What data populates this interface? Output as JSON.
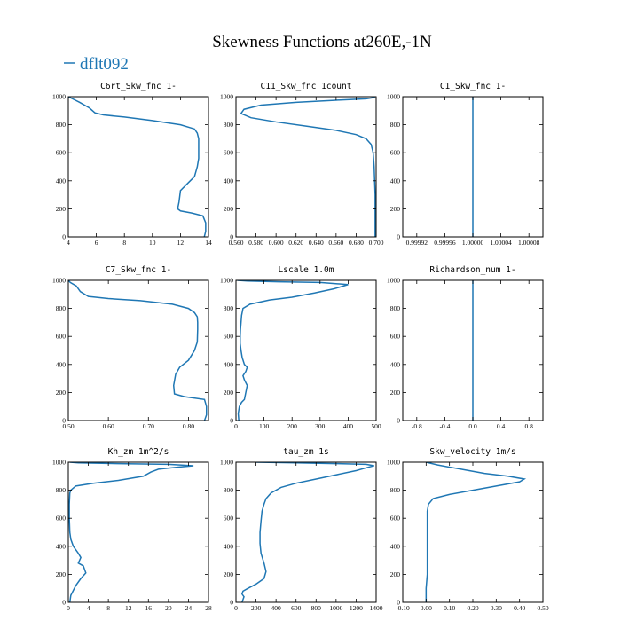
{
  "figure": {
    "title": "Skewness Functions at260E,-1N",
    "legend_label": "dflt092",
    "line_color": "#1f77b4"
  },
  "chart_data": [
    {
      "type": "line",
      "title": "C6rt_Skw_fnc   1-",
      "xlim": [
        4,
        14
      ],
      "ylim": [
        1000,
        0
      ],
      "xticks": [
        4,
        6,
        8,
        10,
        12,
        14
      ],
      "xtick_labels": [
        "4",
        "6",
        "8",
        "10",
        "12",
        "14"
      ],
      "yticks": [
        0,
        200,
        400,
        600,
        800,
        1000
      ],
      "series": [
        {
          "label": "dflt092",
          "x": [
            13.7,
            13.8,
            13.8,
            13.6,
            12.8,
            12.0,
            11.8,
            11.9,
            12.0,
            12.5,
            13.0,
            13.2,
            13.3,
            13.3,
            13.3,
            13.2,
            13.0,
            12.0,
            10.0,
            8.0,
            6.5,
            5.9,
            5.5,
            4.8,
            4.3,
            4.0
          ],
          "y": [
            0,
            40,
            100,
            150,
            170,
            185,
            200,
            250,
            330,
            380,
            430,
            500,
            560,
            650,
            700,
            740,
            770,
            800,
            830,
            855,
            870,
            885,
            920,
            960,
            985,
            1000
          ]
        }
      ]
    },
    {
      "type": "line",
      "title": "C11_Skw_fnc   1count",
      "xlim": [
        0.56,
        0.7
      ],
      "ylim": [
        1000,
        0
      ],
      "xticks": [
        0.56,
        0.58,
        0.6,
        0.62,
        0.64,
        0.66,
        0.68,
        0.7
      ],
      "xtick_labels": [
        "0.560",
        "0.580",
        "0.600",
        "0.620",
        "0.640",
        "0.660",
        "0.680",
        "0.700"
      ],
      "yticks": [
        0,
        200,
        400,
        600,
        800,
        1000
      ],
      "series": [
        {
          "label": "dflt092",
          "x": [
            0.699,
            0.699,
            0.699,
            0.698,
            0.697,
            0.695,
            0.69,
            0.68,
            0.66,
            0.63,
            0.6,
            0.575,
            0.565,
            0.568,
            0.585,
            0.62,
            0.66,
            0.69,
            0.699
          ],
          "y": [
            0,
            100,
            300,
            500,
            600,
            660,
            700,
            730,
            760,
            790,
            820,
            850,
            880,
            910,
            940,
            960,
            975,
            985,
            995
          ]
        }
      ]
    },
    {
      "type": "line",
      "title": "C1_Skw_fnc   1-",
      "xlim": [
        0.9999,
        1.0001
      ],
      "ylim": [
        1000,
        0
      ],
      "xticks": [
        0.99992,
        0.99996,
        1.0,
        1.00004,
        1.00008
      ],
      "xtick_labels": [
        "0.99992",
        "0.99996",
        "1.00000",
        "1.00004",
        "1.00008"
      ],
      "yticks": [
        0,
        200,
        400,
        600,
        800,
        1000
      ],
      "series": [
        {
          "label": "dflt092",
          "x": [
            1.0,
            1.0
          ],
          "y": [
            0,
            1000
          ]
        }
      ]
    },
    {
      "type": "line",
      "title": "C7_Skw_fnc   1-",
      "xlim": [
        0.5,
        0.85
      ],
      "ylim": [
        1000,
        0
      ],
      "xticks": [
        0.5,
        0.6,
        0.7,
        0.8
      ],
      "xtick_labels": [
        "0.50",
        "0.60",
        "0.70",
        "0.80"
      ],
      "yticks": [
        0,
        200,
        400,
        600,
        800,
        1000
      ],
      "series": [
        {
          "label": "dflt092",
          "x": [
            0.84,
            0.845,
            0.845,
            0.84,
            0.79,
            0.765,
            0.763,
            0.768,
            0.778,
            0.8,
            0.815,
            0.822,
            0.823,
            0.823,
            0.822,
            0.815,
            0.8,
            0.76,
            0.68,
            0.6,
            0.55,
            0.53,
            0.52,
            0.505,
            0.5
          ],
          "y": [
            0,
            40,
            100,
            150,
            170,
            190,
            250,
            330,
            380,
            430,
            500,
            560,
            650,
            700,
            740,
            770,
            800,
            830,
            855,
            870,
            885,
            920,
            960,
            985,
            1000
          ]
        }
      ]
    },
    {
      "type": "line",
      "title": "Lscale   1.0m",
      "xlim": [
        0,
        500
      ],
      "ylim": [
        1000,
        0
      ],
      "xticks": [
        0,
        100,
        200,
        300,
        400,
        500
      ],
      "xtick_labels": [
        "0",
        "100",
        "200",
        "300",
        "400",
        "500"
      ],
      "yticks": [
        0,
        200,
        400,
        600,
        800,
        1000
      ],
      "series": [
        {
          "label": "dflt092",
          "x": [
            10,
            8,
            12,
            20,
            30,
            35,
            40,
            30,
            25,
            35,
            40,
            30,
            22,
            18,
            15,
            15,
            16,
            18,
            20,
            25,
            50,
            120,
            200,
            280,
            350,
            400,
            300,
            150,
            40,
            5
          ],
          "y": [
            0,
            50,
            100,
            130,
            150,
            200,
            250,
            290,
            320,
            350,
            380,
            400,
            450,
            500,
            550,
            600,
            650,
            700,
            750,
            800,
            830,
            860,
            880,
            910,
            940,
            970,
            985,
            990,
            995,
            1000
          ]
        }
      ]
    },
    {
      "type": "line",
      "title": "Richardson_num   1-",
      "xlim": [
        -1.0,
        1.0
      ],
      "ylim": [
        1000,
        0
      ],
      "xticks": [
        -0.8,
        -0.4,
        0.0,
        0.4,
        0.8
      ],
      "xtick_labels": [
        "-0.8",
        "-0.4",
        "0.0",
        "0.4",
        "0.8"
      ],
      "yticks": [
        0,
        200,
        400,
        600,
        800,
        1000
      ],
      "series": [
        {
          "label": "dflt092",
          "x": [
            0.0,
            0.0
          ],
          "y": [
            0,
            1000
          ]
        }
      ]
    },
    {
      "type": "line",
      "title": "Kh_zm   1m^2/s",
      "xlim": [
        0,
        28
      ],
      "ylim": [
        1000,
        0
      ],
      "xticks": [
        0,
        4,
        8,
        12,
        16,
        20,
        24,
        28
      ],
      "xtick_labels": [
        "0",
        "4",
        "8",
        "12",
        "16",
        "20",
        "24",
        "28"
      ],
      "yticks": [
        0,
        200,
        400,
        600,
        800,
        1000
      ],
      "series": [
        {
          "label": "dflt092",
          "x": [
            0.3,
            0.5,
            1.5,
            2.5,
            3.5,
            3.0,
            2.0,
            2.5,
            2.0,
            1.0,
            0.5,
            0.3,
            0.2,
            0.2,
            0.3,
            0.5,
            1.5,
            5.0,
            10.0,
            15.0,
            16.5,
            18.0,
            22.0,
            25.0,
            20.0,
            10.0,
            2.0,
            0.3
          ],
          "y": [
            0,
            50,
            120,
            170,
            210,
            260,
            280,
            320,
            350,
            400,
            450,
            500,
            600,
            700,
            780,
            800,
            830,
            850,
            870,
            900,
            930,
            950,
            965,
            975,
            985,
            990,
            995,
            1000
          ]
        }
      ]
    },
    {
      "type": "line",
      "title": "tau_zm   1s",
      "xlim": [
        0,
        1400
      ],
      "ylim": [
        1000,
        0
      ],
      "xticks": [
        0,
        200,
        400,
        600,
        800,
        1000,
        1200,
        1400
      ],
      "xtick_labels": [
        "0",
        "200",
        "400",
        "600",
        "800",
        "1000",
        "1200",
        "1400"
      ],
      "yticks": [
        0,
        200,
        400,
        600,
        800,
        1000
      ],
      "series": [
        {
          "label": "dflt092",
          "x": [
            60,
            70,
            80,
            60,
            70,
            120,
            200,
            280,
            300,
            280,
            250,
            240,
            240,
            250,
            260,
            280,
            300,
            350,
            450,
            600,
            800,
            1000,
            1200,
            1300,
            1380,
            1300,
            1000,
            600,
            200
          ],
          "y": [
            0,
            20,
            40,
            60,
            80,
            100,
            130,
            170,
            220,
            280,
            350,
            420,
            500,
            580,
            650,
            700,
            740,
            780,
            820,
            850,
            880,
            910,
            940,
            960,
            975,
            985,
            990,
            995,
            1000
          ]
        }
      ]
    },
    {
      "type": "line",
      "title": "Skw_velocity   1m/s",
      "xlim": [
        -0.1,
        0.5
      ],
      "ylim": [
        1000,
        0
      ],
      "xticks": [
        -0.1,
        0.0,
        0.1,
        0.2,
        0.3,
        0.4,
        0.5
      ],
      "xtick_labels": [
        "-0.10",
        "0.00",
        "0.10",
        "0.20",
        "0.30",
        "0.40",
        "0.50"
      ],
      "yticks": [
        0,
        200,
        400,
        600,
        800,
        1000
      ],
      "series": [
        {
          "label": "dflt092",
          "x": [
            0.0,
            0.0,
            0.005,
            0.005,
            0.005,
            0.005,
            0.005,
            0.005,
            0.01,
            0.03,
            0.1,
            0.2,
            0.3,
            0.4,
            0.42,
            0.35,
            0.25,
            0.15,
            0.05,
            0.0
          ],
          "y": [
            0,
            100,
            200,
            300,
            400,
            500,
            600,
            650,
            700,
            740,
            770,
            800,
            830,
            860,
            880,
            900,
            920,
            950,
            980,
            1000
          ]
        }
      ]
    }
  ]
}
